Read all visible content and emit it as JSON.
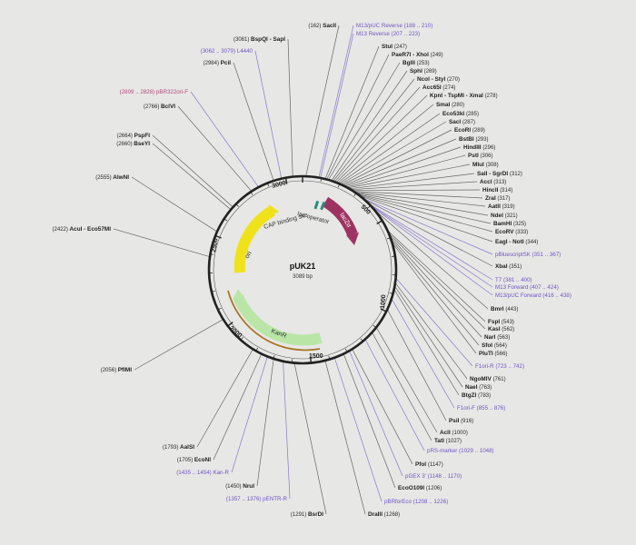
{
  "plasmid": {
    "name": "pUK21",
    "length_label": "3089 bp"
  },
  "ticks": [
    "3000",
    "500",
    "1000",
    "1500",
    "2000",
    "2500"
  ],
  "features": [
    {
      "name": "ori",
      "color": "#f0e21a"
    },
    {
      "name": "lacZα",
      "color": "#9e3361"
    },
    {
      "name": "KanR",
      "color": "#b9e6a7"
    },
    {
      "name": "CAP binding site",
      "color": "#2a8c7a"
    },
    {
      "name": "lac operator",
      "color": "#2a8c7a"
    }
  ],
  "site_labels": [
    {
      "pos": "(162)",
      "name": "SacII",
      "type": "site"
    },
    {
      "pos": "(3081)",
      "name": "BspQI - SapI",
      "type": "site"
    },
    {
      "pos": "(3062 .. 3079)",
      "name": "L4440",
      "type": "feat"
    },
    {
      "pos": "(2984)",
      "name": "PciI",
      "type": "site"
    },
    {
      "pos": "(2809 .. 2828)",
      "name": "pBR322ori-F",
      "type": "pink"
    },
    {
      "pos": "(2766)",
      "name": "BclVI",
      "type": "site"
    },
    {
      "pos": "(2664)",
      "name": "PspFI",
      "type": "site"
    },
    {
      "pos": "(2660)",
      "name": "BseYI",
      "type": "site"
    },
    {
      "pos": "(2555)",
      "name": "AlwNI",
      "type": "site"
    },
    {
      "pos": "(2422)",
      "name": "AcuI - Eco57MI",
      "type": "site"
    },
    {
      "pos": "(2056)",
      "name": "PflMI",
      "type": "site"
    },
    {
      "pos": "(1793)",
      "name": "AalSI",
      "type": "site"
    },
    {
      "pos": "(1705)",
      "name": "EcoNI",
      "type": "site"
    },
    {
      "pos": "(1435 .. 1454)",
      "name": "Kan-R",
      "type": "feat"
    },
    {
      "pos": "(1450)",
      "name": "NruI",
      "type": "site"
    },
    {
      "pos": "(1357 .. 1376)",
      "name": "pENTR-R",
      "type": "feat"
    },
    {
      "pos": "(1291)",
      "name": "BsrDI",
      "type": "site"
    },
    {
      "name": "M13/pUC Reverse",
      "pos": "(188 .. 210)",
      "type": "feat"
    },
    {
      "name": "M13 Reverse",
      "pos": "(207 .. 223)",
      "type": "feat"
    },
    {
      "name": "StuI",
      "pos": "(247)",
      "type": "site"
    },
    {
      "name": "PaeR7I - XhoI",
      "pos": "(249)",
      "type": "site"
    },
    {
      "name": "BglII",
      "pos": "(253)",
      "type": "site"
    },
    {
      "name": "SphI",
      "pos": "(269)",
      "type": "site"
    },
    {
      "name": "NcoI - StyI",
      "pos": "(270)",
      "type": "site"
    },
    {
      "name": "Acc65I",
      "pos": "(274)",
      "type": "site"
    },
    {
      "name": "KpnI - TspMI - XmaI",
      "pos": "(278)",
      "type": "site"
    },
    {
      "name": "SmaI",
      "pos": "(280)",
      "type": "site"
    },
    {
      "name": "Eco53kI",
      "pos": "(285)",
      "type": "site"
    },
    {
      "name": "SacI",
      "pos": "(287)",
      "type": "site"
    },
    {
      "name": "EcoRI",
      "pos": "(289)",
      "type": "site"
    },
    {
      "name": "BstBI",
      "pos": "(293)",
      "type": "site"
    },
    {
      "name": "HindIII",
      "pos": "(296)",
      "type": "site"
    },
    {
      "name": "PstI",
      "pos": "(306)",
      "type": "site"
    },
    {
      "name": "MluI",
      "pos": "(308)",
      "type": "site"
    },
    {
      "name": "SalI - SgrDI",
      "pos": "(312)",
      "type": "site"
    },
    {
      "name": "AccI",
      "pos": "(313)",
      "type": "site"
    },
    {
      "name": "HincII",
      "pos": "(314)",
      "type": "site"
    },
    {
      "name": "ZraI",
      "pos": "(317)",
      "type": "site"
    },
    {
      "name": "AatII",
      "pos": "(319)",
      "type": "site"
    },
    {
      "name": "NdeI",
      "pos": "(321)",
      "type": "site"
    },
    {
      "name": "BamHI",
      "pos": "(325)",
      "type": "site"
    },
    {
      "name": "EcoRV",
      "pos": "(333)",
      "type": "site"
    },
    {
      "name": "EagI - NotI",
      "pos": "(344)",
      "type": "site"
    },
    {
      "name": "pBluescriptSK",
      "pos": "(351 .. 367)",
      "type": "feat"
    },
    {
      "name": "XbaI",
      "pos": "(351)",
      "type": "site"
    },
    {
      "name": "T7",
      "pos": "(381 .. 400)",
      "type": "feat"
    },
    {
      "name": "M13 Forward",
      "pos": "(407 .. 424)",
      "type": "feat"
    },
    {
      "name": "M13/pUC Forward",
      "pos": "(416 .. 438)",
      "type": "feat"
    },
    {
      "name": "BmrI",
      "pos": "(443)",
      "type": "site"
    },
    {
      "name": "FspI",
      "pos": "(543)",
      "type": "site"
    },
    {
      "name": "KasI",
      "pos": "(562)",
      "type": "site"
    },
    {
      "name": "NarI",
      "pos": "(563)",
      "type": "site"
    },
    {
      "name": "SfoI",
      "pos": "(564)",
      "type": "site"
    },
    {
      "name": "PluTI",
      "pos": "(566)",
      "type": "site"
    },
    {
      "name": "F1ori-R",
      "pos": "(723 .. 742)",
      "type": "feat"
    },
    {
      "name": "NgoMIV",
      "pos": "(761)",
      "type": "site"
    },
    {
      "name": "NaeI",
      "pos": "(763)",
      "type": "site"
    },
    {
      "name": "BtgZI",
      "pos": "(783)",
      "type": "site"
    },
    {
      "name": "F1ori-F",
      "pos": "(855 .. 876)",
      "type": "feat"
    },
    {
      "name": "PsiI",
      "pos": "(916)",
      "type": "site"
    },
    {
      "name": "AclI",
      "pos": "(1000)",
      "type": "site"
    },
    {
      "name": "TatI",
      "pos": "(1027)",
      "type": "site"
    },
    {
      "name": "pRS-marker",
      "pos": "(1029 .. 1048)",
      "type": "feat"
    },
    {
      "name": "PfoI",
      "pos": "(1147)",
      "type": "site"
    },
    {
      "name": "pGEX 3'",
      "pos": "(1148 .. 1170)",
      "type": "feat"
    },
    {
      "name": "EcoO109I",
      "pos": "(1206)",
      "type": "site"
    },
    {
      "name": "pBRforEco",
      "pos": "(1208 .. 1226)",
      "type": "feat"
    },
    {
      "name": "DraIII",
      "pos": "(1268)",
      "type": "site"
    }
  ]
}
